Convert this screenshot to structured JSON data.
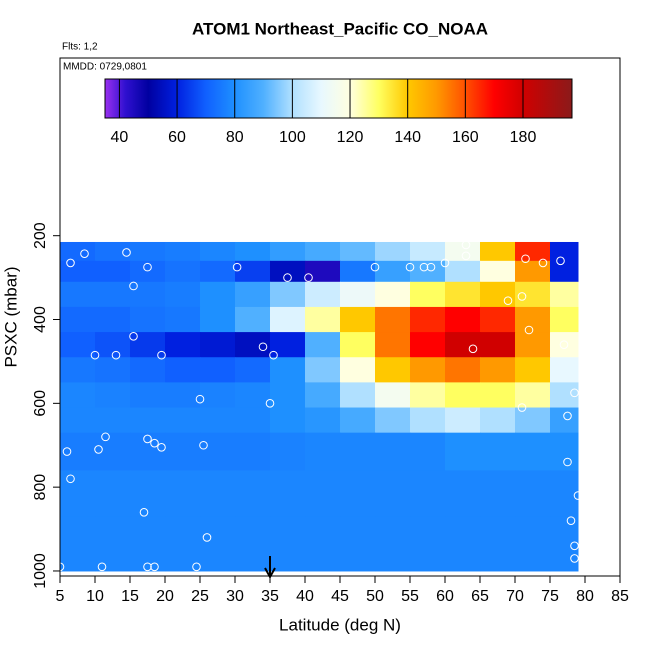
{
  "chart_data": {
    "type": "heatmap",
    "title": "ATOM1 Northeast_Pacific CO_NOAA",
    "flights_label": "Flts: 1,2",
    "dates_label": "MMDD: 0729,0801",
    "x_label": "Latitude (deg N)",
    "y_label": "PSXC (mbar)",
    "xlim": [
      5,
      85
    ],
    "xticks": [
      5,
      10,
      15,
      20,
      25,
      30,
      35,
      40,
      45,
      50,
      55,
      60,
      65,
      70,
      75,
      80,
      85
    ],
    "ylim": [
      1012,
      -224
    ],
    "yticks": [
      200,
      400,
      600,
      800,
      1000
    ],
    "x_edges": [
      5,
      10,
      15,
      20,
      25,
      30,
      35,
      40,
      45,
      50,
      55,
      60,
      65,
      70,
      75,
      79
    ],
    "y_edges": [
      215,
      260,
      310,
      370,
      430,
      490,
      550,
      610,
      670,
      760,
      870,
      1000
    ],
    "z": [
      [
        72,
        74,
        75,
        76,
        78,
        80,
        84,
        88,
        92,
        98,
        104,
        115,
        140,
        165,
        60
      ],
      [
        70,
        70,
        72,
        74,
        72,
        65,
        55,
        45,
        75,
        85,
        90,
        100,
        120,
        150,
        60
      ],
      [
        75,
        75,
        75,
        76,
        80,
        85,
        95,
        105,
        112,
        120,
        130,
        135,
        140,
        135,
        125
      ],
      [
        72,
        72,
        74,
        75,
        80,
        90,
        108,
        125,
        140,
        155,
        165,
        170,
        165,
        150,
        130
      ],
      [
        70,
        68,
        64,
        60,
        58,
        55,
        60,
        90,
        130,
        155,
        170,
        180,
        180,
        150,
        120
      ],
      [
        75,
        74,
        72,
        70,
        70,
        72,
        80,
        95,
        120,
        140,
        150,
        155,
        150,
        140,
        110
      ],
      [
        78,
        77,
        76,
        76,
        77,
        78,
        80,
        88,
        100,
        115,
        125,
        130,
        130,
        125,
        100
      ],
      [
        78,
        78,
        78,
        78,
        78,
        78,
        80,
        82,
        88,
        95,
        100,
        105,
        100,
        95,
        85
      ],
      [
        76,
        76,
        76,
        76,
        76,
        76,
        77,
        78,
        78,
        78,
        78,
        80,
        80,
        80,
        80
      ],
      [
        78,
        78,
        78,
        78,
        78,
        78,
        78,
        78,
        78,
        78,
        78,
        78,
        78,
        78,
        78
      ],
      [
        78,
        78,
        78,
        78,
        78,
        78,
        78,
        78,
        78,
        78,
        78,
        78,
        78,
        78,
        78
      ]
    ],
    "colorscale": [
      [
        35,
        "#9a30f0"
      ],
      [
        42,
        "#3010d0"
      ],
      [
        50,
        "#0000a0"
      ],
      [
        60,
        "#0020e0"
      ],
      [
        70,
        "#1060ff"
      ],
      [
        80,
        "#1e90ff"
      ],
      [
        90,
        "#50b0ff"
      ],
      [
        100,
        "#b0e0ff"
      ],
      [
        110,
        "#e8f8ff"
      ],
      [
        120,
        "#ffffe0"
      ],
      [
        130,
        "#ffff60"
      ],
      [
        140,
        "#ffc800"
      ],
      [
        150,
        "#ff9900"
      ],
      [
        160,
        "#ff5000"
      ],
      [
        170,
        "#ff0000"
      ],
      [
        180,
        "#d00000"
      ],
      [
        197,
        "#8b1a1a"
      ]
    ],
    "colorbar": {
      "lim": [
        35,
        197
      ],
      "ticks": [
        40,
        60,
        80,
        100,
        120,
        140,
        160,
        180
      ]
    },
    "points": {
      "x": [
        8.5,
        6.5,
        14.5,
        15.5,
        17.5,
        30.3,
        37.5,
        40.5,
        50,
        55,
        57,
        58,
        60,
        63,
        63,
        71.5,
        74,
        76.5,
        69,
        71,
        15.5,
        19.5,
        10,
        13,
        34,
        35.5,
        64,
        72,
        77,
        78.5,
        77.5,
        71,
        25,
        35,
        6,
        10.5,
        11.5,
        17.5,
        18.5,
        19.5,
        25.5,
        77.5,
        6.5,
        17,
        79,
        78,
        78.5,
        78.5,
        26,
        5,
        11,
        17.5,
        18.5,
        24.5
      ],
      "y": [
        243,
        265,
        240,
        320,
        275,
        275,
        300,
        300,
        275,
        275,
        275,
        275,
        265,
        222,
        248,
        255,
        265,
        260,
        355,
        345,
        440,
        485,
        485,
        485,
        465,
        485,
        470,
        425,
        460,
        575,
        630,
        610,
        590,
        600,
        715,
        710,
        680,
        685,
        695,
        705,
        700,
        740,
        780,
        860,
        820,
        880,
        940,
        970,
        920,
        990,
        990,
        990,
        990,
        990
      ]
    },
    "arrow_x": 35
  }
}
